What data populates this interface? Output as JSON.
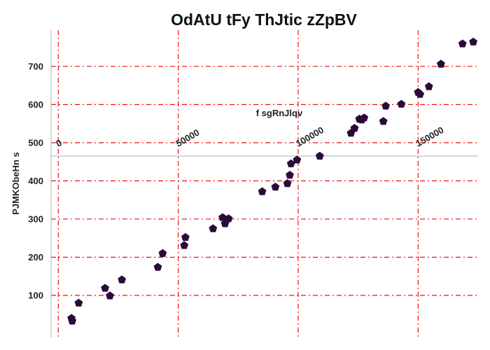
{
  "chart_data": {
    "type": "scatter",
    "title": "OdAtU tFy ThJtic zZpBV",
    "xlabel": "f sgRnJlqv",
    "ylabel": "PJMKObeHn  s",
    "xlim": [
      -3000,
      175000
    ],
    "ylim": [
      -10,
      795
    ],
    "x_ticks": [
      0,
      50000,
      100000,
      150000
    ],
    "x_tick_labels": [
      "0",
      "50000",
      "100000",
      "150000"
    ],
    "y_ticks": [
      100,
      200,
      300,
      400,
      500,
      600,
      700
    ],
    "y_tick_labels": [
      "100",
      "200",
      "300",
      "400",
      "500",
      "600",
      "700"
    ],
    "x_axis_crosses_y_at": 465,
    "grid": true,
    "grid_color": "#ee1111",
    "marker_color": "#2a0a3a",
    "marker": "pentagon",
    "legend": false,
    "points": [
      {
        "x": 5500,
        "y": 40
      },
      {
        "x": 5800,
        "y": 33
      },
      {
        "x": 8500,
        "y": 80
      },
      {
        "x": 19500,
        "y": 119
      },
      {
        "x": 21500,
        "y": 99
      },
      {
        "x": 26500,
        "y": 141
      },
      {
        "x": 41500,
        "y": 174
      },
      {
        "x": 43500,
        "y": 210
      },
      {
        "x": 52500,
        "y": 231
      },
      {
        "x": 53000,
        "y": 252
      },
      {
        "x": 64500,
        "y": 275
      },
      {
        "x": 68500,
        "y": 304
      },
      {
        "x": 69500,
        "y": 288
      },
      {
        "x": 71000,
        "y": 301
      },
      {
        "x": 70000,
        "y": 297
      },
      {
        "x": 85000,
        "y": 372
      },
      {
        "x": 90500,
        "y": 384
      },
      {
        "x": 95500,
        "y": 393
      },
      {
        "x": 96500,
        "y": 415
      },
      {
        "x": 97000,
        "y": 445
      },
      {
        "x": 99500,
        "y": 455
      },
      {
        "x": 109000,
        "y": 465
      },
      {
        "x": 122000,
        "y": 525
      },
      {
        "x": 123500,
        "y": 538
      },
      {
        "x": 125500,
        "y": 562
      },
      {
        "x": 127500,
        "y": 565
      },
      {
        "x": 126500,
        "y": 560
      },
      {
        "x": 135500,
        "y": 556
      },
      {
        "x": 136500,
        "y": 596
      },
      {
        "x": 143000,
        "y": 601
      },
      {
        "x": 150000,
        "y": 632
      },
      {
        "x": 150800,
        "y": 627
      },
      {
        "x": 154500,
        "y": 647
      },
      {
        "x": 159500,
        "y": 706
      },
      {
        "x": 168500,
        "y": 759
      },
      {
        "x": 173000,
        "y": 764
      }
    ]
  }
}
